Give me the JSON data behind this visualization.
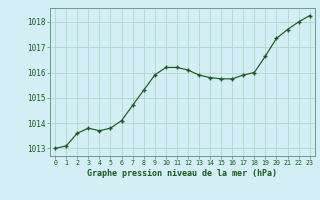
{
  "x": [
    0,
    1,
    2,
    3,
    4,
    5,
    6,
    7,
    8,
    9,
    10,
    11,
    12,
    13,
    14,
    15,
    16,
    17,
    18,
    19,
    20,
    21,
    22,
    23
  ],
  "y": [
    1013.0,
    1013.1,
    1013.6,
    1013.8,
    1013.7,
    1013.8,
    1014.1,
    1014.7,
    1015.3,
    1015.9,
    1016.2,
    1016.2,
    1016.1,
    1015.9,
    1015.8,
    1015.75,
    1015.75,
    1015.9,
    1016.0,
    1016.65,
    1017.35,
    1017.7,
    1018.0,
    1018.25
  ],
  "line_color": "#1a5c1a",
  "marker": "+",
  "bg_color": "#d4eef5",
  "grid_color": "#b0d8cc",
  "xlabel": "Graphe pression niveau de la mer (hPa)",
  "xlabel_color": "#1a5c1a",
  "tick_color": "#1a5c1a",
  "ylim": [
    1012.7,
    1018.55
  ],
  "yticks": [
    1013,
    1014,
    1015,
    1016,
    1017,
    1018
  ],
  "border_color": "#6a9a8a"
}
